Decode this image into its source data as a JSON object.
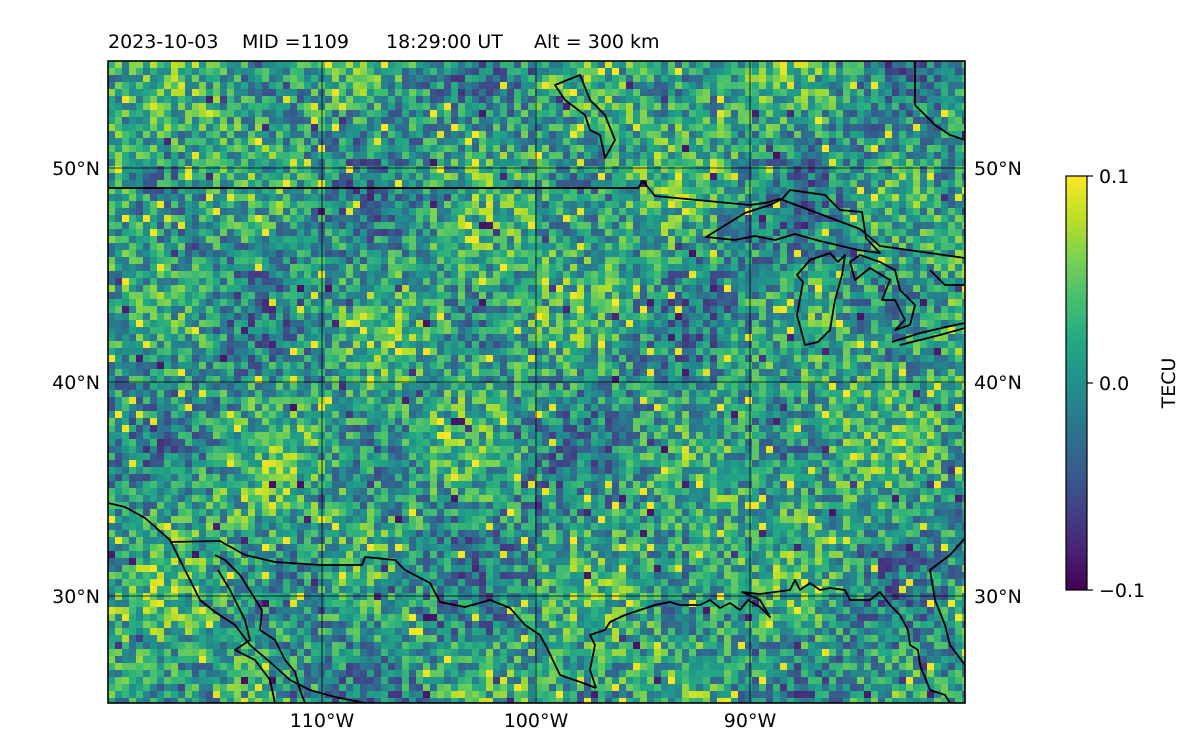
{
  "title": {
    "date": "2023-10-03",
    "mid": "MID =1109",
    "time": "18:29:00  UT",
    "alt": "Alt = 300 km"
  },
  "map": {
    "projection": "PlateCarree",
    "lon_range": [
      -120,
      -80
    ],
    "lat_range": [
      25,
      55
    ],
    "lon_ticks": [
      -110,
      -100,
      -90
    ],
    "lat_ticks": [
      30,
      40,
      50
    ],
    "lon_tick_labels": [
      "110°W",
      "100°W",
      "90°W"
    ],
    "lat_tick_labels": [
      "30°N",
      "40°N",
      "50°N"
    ],
    "gridlines": true,
    "coastlines": true,
    "borders": true,
    "data_field": "differential TEC (noisy, -0.1 to 0.1 TECU)"
  },
  "colorbar": {
    "label": "TECU",
    "colormap": "viridis",
    "vmin": -0.1,
    "vmax": 0.1,
    "tick_labels": [
      "0.1",
      "0.0",
      "−0.1"
    ]
  }
}
